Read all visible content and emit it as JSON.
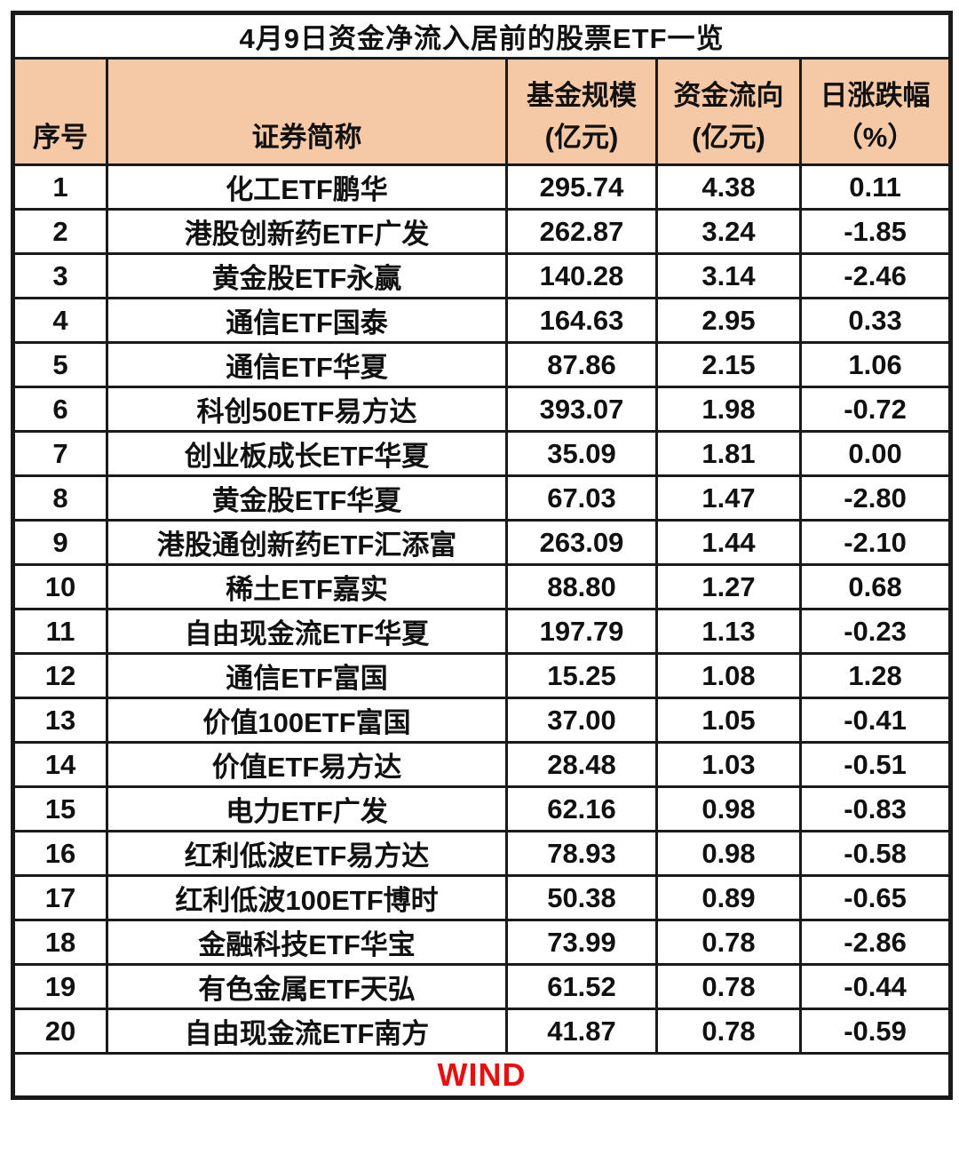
{
  "chart_data": {
    "type": "table",
    "title": "4月9日资金净流入居前的股票ETF一览",
    "source": "WIND",
    "source_color": "#E8100F",
    "header_bg": "#F6C9A6",
    "headers": [
      {
        "id": "rank",
        "lines": [
          "序号"
        ]
      },
      {
        "id": "name",
        "lines": [
          "证券简称"
        ]
      },
      {
        "id": "fund-size",
        "lines": [
          "基金规模",
          "(亿元)"
        ]
      },
      {
        "id": "fund-flow",
        "lines": [
          "资金流向",
          "(亿元)"
        ]
      },
      {
        "id": "daily-change",
        "lines": [
          "日涨跌幅",
          "（%）"
        ]
      }
    ],
    "rows": [
      [
        "1",
        "化工ETF鹏华",
        "295.74",
        "4.38",
        "0.11"
      ],
      [
        "2",
        "港股创新药ETF广发",
        "262.87",
        "3.24",
        "-1.85"
      ],
      [
        "3",
        "黄金股ETF永赢",
        "140.28",
        "3.14",
        "-2.46"
      ],
      [
        "4",
        "通信ETF国泰",
        "164.63",
        "2.95",
        "0.33"
      ],
      [
        "5",
        "通信ETF华夏",
        "87.86",
        "2.15",
        "1.06"
      ],
      [
        "6",
        "科创50ETF易方达",
        "393.07",
        "1.98",
        "-0.72"
      ],
      [
        "7",
        "创业板成长ETF华夏",
        "35.09",
        "1.81",
        "0.00"
      ],
      [
        "8",
        "黄金股ETF华夏",
        "67.03",
        "1.47",
        "-2.80"
      ],
      [
        "9",
        "港股通创新药ETF汇添富",
        "263.09",
        "1.44",
        "-2.10"
      ],
      [
        "10",
        "稀土ETF嘉实",
        "88.80",
        "1.27",
        "0.68"
      ],
      [
        "11",
        "自由现金流ETF华夏",
        "197.79",
        "1.13",
        "-0.23"
      ],
      [
        "12",
        "通信ETF富国",
        "15.25",
        "1.08",
        "1.28"
      ],
      [
        "13",
        "价值100ETF富国",
        "37.00",
        "1.05",
        "-0.41"
      ],
      [
        "14",
        "价值ETF易方达",
        "28.48",
        "1.03",
        "-0.51"
      ],
      [
        "15",
        "电力ETF广发",
        "62.16",
        "0.98",
        "-0.83"
      ],
      [
        "16",
        "红利低波ETF易方达",
        "78.93",
        "0.98",
        "-0.58"
      ],
      [
        "17",
        "红利低波100ETF博时",
        "50.38",
        "0.89",
        "-0.65"
      ],
      [
        "18",
        "金融科技ETF华宝",
        "73.99",
        "0.78",
        "-2.86"
      ],
      [
        "19",
        "有色金属ETF天弘",
        "61.52",
        "0.78",
        "-0.44"
      ],
      [
        "20",
        "自由现金流ETF南方",
        "41.87",
        "0.78",
        "-0.59"
      ]
    ]
  }
}
